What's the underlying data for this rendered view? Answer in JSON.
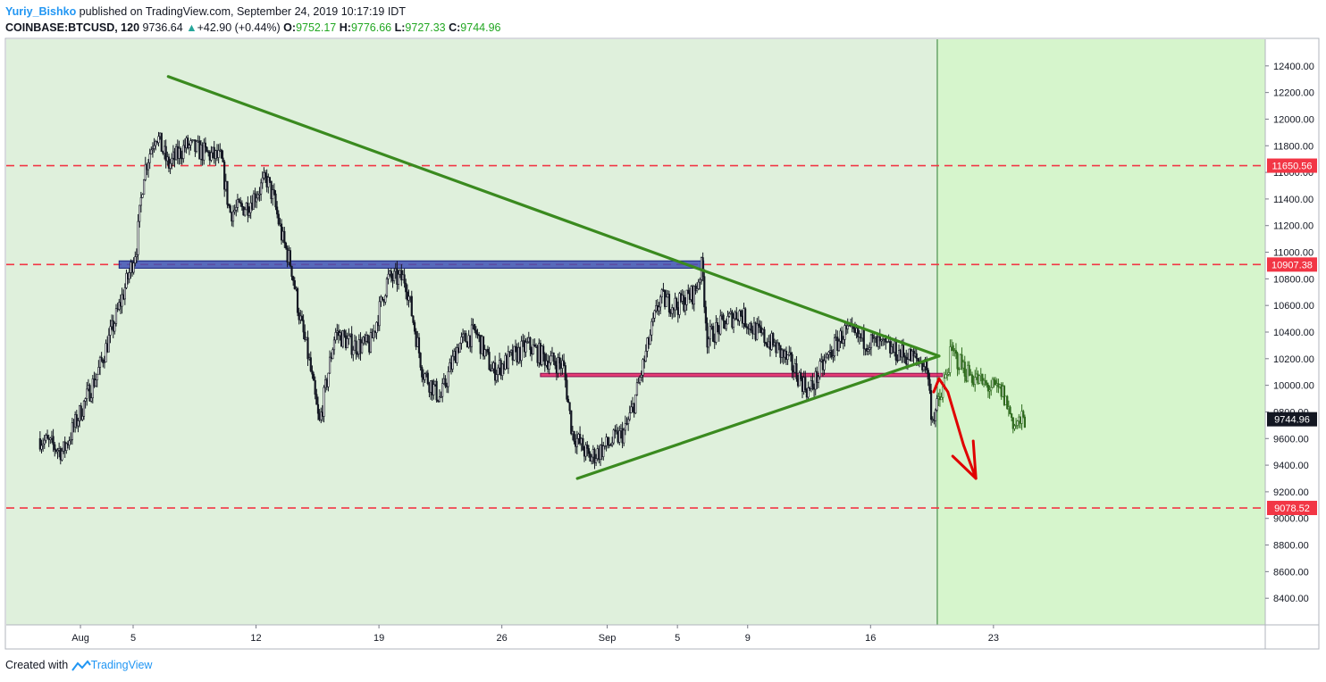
{
  "header": {
    "author": "Yuriy_Bishko",
    "published_text": " published on TradingView.com, September 24, 2019 10:17:19 IDT",
    "symbol": "COINBASE:BTCUSD, 120",
    "last": "9736.64",
    "change": "+42.90 (+0.44%)",
    "o_label": "O:",
    "o": "9752.17",
    "h_label": "H:",
    "h": "9776.66",
    "l_label": "L:",
    "l": "9727.33",
    "c_label": "C:",
    "c": "9744.96"
  },
  "footer": {
    "created": "Created with",
    "brand": "TradingView"
  },
  "chart_data": {
    "type": "candlestick",
    "x_ticks": [
      {
        "label": "Aug",
        "day": 2
      },
      {
        "label": "5",
        "day": 5
      },
      {
        "label": "12",
        "day": 12
      },
      {
        "label": "19",
        "day": 19
      },
      {
        "label": "26",
        "day": 26
      },
      {
        "label": "Sep",
        "day": 32
      },
      {
        "label": "5",
        "day": 36
      },
      {
        "label": "9",
        "day": 40
      },
      {
        "label": "16",
        "day": 47
      },
      {
        "label": "23",
        "day": 54
      }
    ],
    "y_ticks": [
      8400,
      8600,
      8800,
      9000,
      9200,
      9400,
      9600,
      9800,
      10000,
      10200,
      10400,
      10600,
      10800,
      11000,
      11200,
      11400,
      11600,
      11800,
      12000,
      12200,
      12400
    ],
    "y_tick_labels": [
      "8400.00",
      "8600.00",
      "8800.00",
      "9000.00",
      "9200.00",
      "9400.00",
      "9600.00",
      "9800.00",
      "10000.00",
      "10200.00",
      "10400.00",
      "10600.00",
      "10800.00",
      "11000.00",
      "11200.00",
      "11400.00",
      "11600.00",
      "11800.00",
      "12000.00",
      "12200.00",
      "12400.00"
    ],
    "ylim": [
      8200,
      12600
    ],
    "price_levels": [
      {
        "value": 11650.56,
        "label": "11650.56",
        "color": "#f23645"
      },
      {
        "value": 10907.38,
        "label": "10907.38",
        "color": "#f23645"
      },
      {
        "value": 9078.52,
        "label": "9078.52",
        "color": "#f23645"
      }
    ],
    "last_price": {
      "value": 9744.96,
      "label": "9744.96"
    },
    "close_path": [
      [
        -0.3,
        9600
      ],
      [
        1,
        9500
      ],
      [
        2,
        9800
      ],
      [
        3,
        10100
      ],
      [
        4,
        10500
      ],
      [
        4.8,
        10850
      ],
      [
        5.2,
        11050
      ],
      [
        5.6,
        11600
      ],
      [
        6.3,
        11900
      ],
      [
        7,
        11650
      ],
      [
        8,
        11800
      ],
      [
        9,
        11750
      ],
      [
        10,
        11700
      ],
      [
        10.5,
        11300
      ],
      [
        11.5,
        11350
      ],
      [
        12.6,
        11550
      ],
      [
        13,
        11400
      ],
      [
        13.5,
        11100
      ],
      [
        14,
        10900
      ],
      [
        14.5,
        10500
      ],
      [
        15,
        10200
      ],
      [
        15.6,
        9700
      ],
      [
        16.5,
        10400
      ],
      [
        17.5,
        10300
      ],
      [
        18.5,
        10300
      ],
      [
        19.5,
        10800
      ],
      [
        20.5,
        10800
      ],
      [
        21.5,
        10100
      ],
      [
        22.5,
        9900
      ],
      [
        23.5,
        10300
      ],
      [
        24.5,
        10400
      ],
      [
        25.5,
        10100
      ],
      [
        26.5,
        10200
      ],
      [
        27.5,
        10300
      ],
      [
        28.5,
        10200
      ],
      [
        29.5,
        10150
      ],
      [
        30,
        9650
      ],
      [
        31,
        9450
      ],
      [
        32,
        9550
      ],
      [
        33,
        9650
      ],
      [
        33.5,
        9850
      ],
      [
        34.5,
        10400
      ],
      [
        35,
        10650
      ],
      [
        36,
        10600
      ],
      [
        37,
        10700
      ],
      [
        37.4,
        10900
      ],
      [
        37.7,
        10350
      ],
      [
        38.5,
        10450
      ],
      [
        39.5,
        10550
      ],
      [
        40.5,
        10400
      ],
      [
        41.5,
        10300
      ],
      [
        42.5,
        10150
      ],
      [
        43.5,
        9950
      ],
      [
        44.5,
        10200
      ],
      [
        45.5,
        10400
      ],
      [
        46.5,
        10350
      ],
      [
        47.5,
        10300
      ],
      [
        48.5,
        10250
      ],
      [
        49.5,
        10200
      ],
      [
        50.2,
        10150
      ],
      [
        50.5,
        9750
      ],
      [
        51,
        9900
      ],
      [
        51.6,
        10250
      ],
      [
        52.5,
        10100
      ],
      [
        53.5,
        10000
      ],
      [
        54.5,
        9950
      ],
      [
        55.2,
        9700
      ],
      [
        55.8,
        9745
      ]
    ],
    "candles_colored_from_day": 50.8,
    "lines": [
      {
        "name": "upper-trendline",
        "from": [
          7,
          12320
        ],
        "to": [
          50.9,
          10220
        ],
        "color": "#3a8a1f"
      },
      {
        "name": "lower-trendline",
        "from": [
          30.3,
          9300
        ],
        "to": [
          50.9,
          10220
        ],
        "color": "#3a8a1f"
      }
    ],
    "zones": [
      {
        "name": "resistance-zone",
        "x0": 4.2,
        "x1": 37.5,
        "y0": 10880,
        "y1": 10935,
        "fill": "#3f51b5",
        "stroke": "#1a237e"
      },
      {
        "name": "support-zone",
        "x0": 28.2,
        "x1": 51.1,
        "y0": 10065,
        "y1": 10090,
        "fill": "#e91e63",
        "stroke": "#880e4f"
      }
    ],
    "forecast_arrow": [
      [
        50.6,
        9950
      ],
      [
        50.9,
        10050
      ],
      [
        51.4,
        9950
      ],
      [
        52.3,
        9550
      ],
      [
        53,
        9300
      ]
    ],
    "forecast_arrow_color": "#e00000",
    "future_zone_start_day": 50.8
  }
}
